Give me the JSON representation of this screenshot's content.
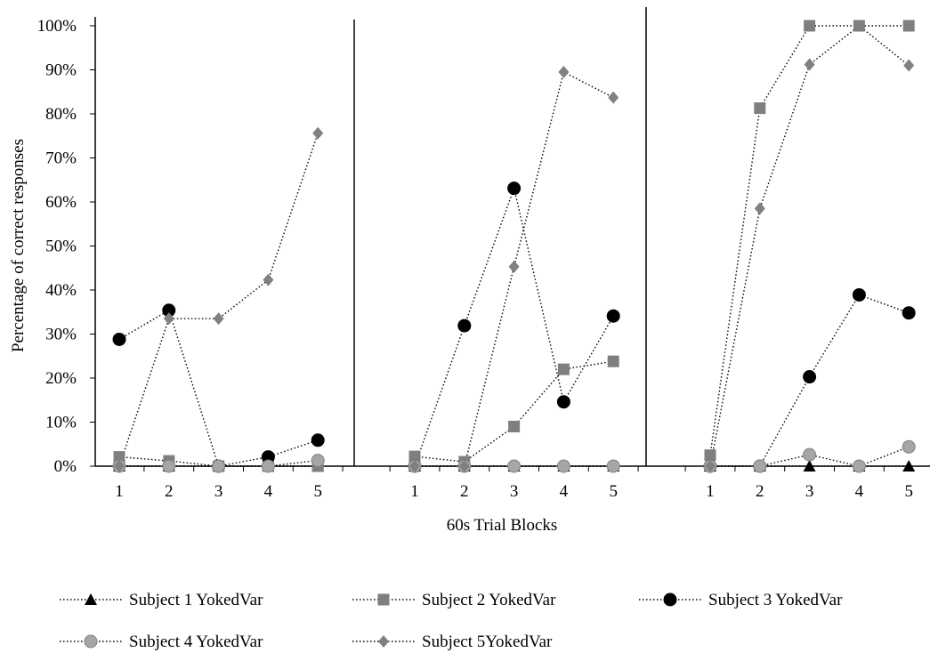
{
  "chart_data": {
    "type": "line",
    "ylabel": "Percentage of correct responses",
    "xlabel": "60s Trial Blocks",
    "y_ticks": [
      "0%",
      "10%",
      "20%",
      "30%",
      "40%",
      "50%",
      "60%",
      "70%",
      "80%",
      "90%",
      "100%"
    ],
    "ylim": [
      0,
      100
    ],
    "panels": [
      {
        "x": [
          1,
          2,
          3,
          4,
          5
        ],
        "tick_labels": [
          "1",
          "2",
          "3",
          "4",
          "5"
        ]
      },
      {
        "x": [
          1,
          2,
          3,
          4,
          5
        ],
        "tick_labels": [
          "1",
          "2",
          "3",
          "4",
          "5"
        ]
      },
      {
        "x": [
          1,
          2,
          3,
          4,
          5
        ],
        "tick_labels": [
          "1",
          "2",
          "3",
          "4",
          "5"
        ]
      }
    ],
    "series": [
      {
        "name": "Subject 1 YokedVar",
        "marker": "triangle",
        "color": "#000000",
        "values": [
          [
            0,
            0,
            0,
            0,
            0
          ],
          [
            0,
            0,
            0,
            0,
            0
          ],
          [
            0,
            0,
            0,
            0,
            0
          ]
        ]
      },
      {
        "name": "Subject 2 YokedVar",
        "marker": "square",
        "color": "#7f7f7f",
        "values": [
          [
            2.1,
            1.2,
            0,
            0,
            0
          ],
          [
            2.2,
            1.0,
            9.0,
            22.0,
            23.8
          ],
          [
            2.5,
            81.3,
            100,
            100,
            100
          ]
        ]
      },
      {
        "name": "Subject 3 YokedVar",
        "marker": "circle",
        "color": "#000000",
        "values": [
          [
            28.8,
            35.4,
            0,
            2.1,
            5.9
          ],
          [
            0,
            31.9,
            63.1,
            14.6,
            34.1
          ],
          [
            0,
            0,
            20.3,
            38.9,
            34.8
          ]
        ]
      },
      {
        "name": "Subject 4 YokedVar",
        "marker": "circle-gray",
        "color": "#a6a6a6",
        "values": [
          [
            0,
            0,
            0,
            0,
            1.3
          ],
          [
            0,
            0,
            0,
            0,
            0
          ],
          [
            0,
            0,
            2.6,
            0,
            4.4
          ]
        ]
      },
      {
        "name": "Subject 5YokedVar",
        "marker": "diamond",
        "color": "#808080",
        "values": [
          [
            0,
            33.5,
            33.5,
            42.3,
            75.6
          ],
          [
            0,
            0,
            45.3,
            89.5,
            83.7
          ],
          [
            0,
            58.5,
            91.2,
            100,
            91.0
          ]
        ]
      }
    ],
    "legend": "bottom"
  }
}
